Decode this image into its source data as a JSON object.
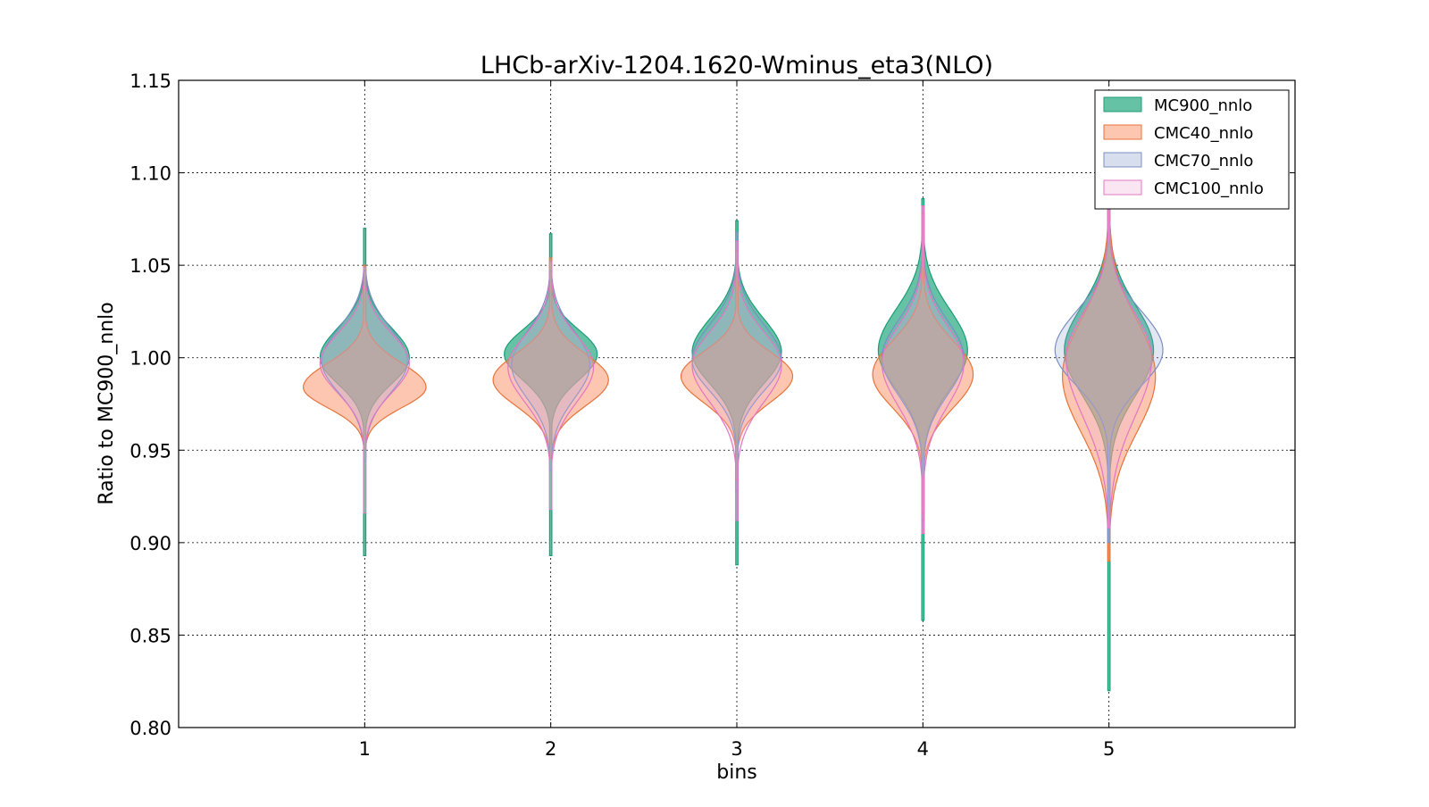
{
  "chart_data": {
    "type": "violin",
    "title": "LHCb-arXiv-1204.1620-Wminus_eta3(NLO)",
    "xlabel": "bins",
    "ylabel": "Ratio to MC900_nnlo",
    "xlim": [
      0,
      6
    ],
    "ylim": [
      0.8,
      1.15
    ],
    "x_ticks": [
      "1",
      "2",
      "3",
      "4",
      "5"
    ],
    "y_ticks": [
      "0.80",
      "0.85",
      "0.90",
      "0.95",
      "1.00",
      "1.05",
      "1.10",
      "1.15"
    ],
    "grid": true,
    "legend_position": "top-right",
    "series": [
      {
        "name": "MC900_nnlo",
        "fill": "#66c2a5",
        "edge": "#1b9e77",
        "fill_opacity": 1.0,
        "violins": [
          {
            "bin": 1,
            "min": 0.893,
            "max": 1.07,
            "peak": 1.0,
            "width": 0.24,
            "s_up": 0.016,
            "s_down": 0.014
          },
          {
            "bin": 2,
            "min": 0.893,
            "max": 1.067,
            "peak": 1.002,
            "width": 0.25,
            "s_up": 0.013,
            "s_down": 0.014
          },
          {
            "bin": 3,
            "min": 0.888,
            "max": 1.074,
            "peak": 1.003,
            "width": 0.24,
            "s_up": 0.018,
            "s_down": 0.017
          },
          {
            "bin": 4,
            "min": 0.858,
            "max": 1.086,
            "peak": 1.004,
            "width": 0.24,
            "s_up": 0.022,
            "s_down": 0.021
          },
          {
            "bin": 5,
            "min": 0.82,
            "max": 1.125,
            "peak": 1.004,
            "width": 0.24,
            "s_up": 0.024,
            "s_down": 0.024
          }
        ]
      },
      {
        "name": "CMC40_nnlo",
        "fill": "#fc8d62",
        "edge": "#e8743b",
        "fill_opacity": 0.5,
        "violins": [
          {
            "bin": 1,
            "min": 0.951,
            "max": 1.05,
            "peak": 0.984,
            "width": 0.33,
            "s_up": 0.013,
            "s_down": 0.011
          },
          {
            "bin": 2,
            "min": 0.946,
            "max": 1.054,
            "peak": 0.988,
            "width": 0.31,
            "s_up": 0.014,
            "s_down": 0.014
          },
          {
            "bin": 3,
            "min": 0.934,
            "max": 1.058,
            "peak": 0.99,
            "width": 0.3,
            "s_up": 0.013,
            "s_down": 0.014
          },
          {
            "bin": 4,
            "min": 0.916,
            "max": 1.078,
            "peak": 0.991,
            "width": 0.27,
            "s_up": 0.018,
            "s_down": 0.018
          },
          {
            "bin": 5,
            "min": 0.89,
            "max": 1.1,
            "peak": 0.99,
            "width": 0.25,
            "s_up": 0.03,
            "s_down": 0.03
          }
        ]
      },
      {
        "name": "CMC70_nnlo",
        "fill": "#8da0cb",
        "edge": "#7b8fc4",
        "fill_opacity": 0.25,
        "violins": [
          {
            "bin": 1,
            "min": 0.944,
            "max": 1.047,
            "peak": 0.998,
            "width": 0.23,
            "s_up": 0.018,
            "s_down": 0.017
          },
          {
            "bin": 2,
            "min": 0.939,
            "max": 1.047,
            "peak": 0.996,
            "width": 0.21,
            "s_up": 0.018,
            "s_down": 0.018
          },
          {
            "bin": 3,
            "min": 0.928,
            "max": 1.068,
            "peak": 0.999,
            "width": 0.24,
            "s_up": 0.019,
            "s_down": 0.017
          },
          {
            "bin": 4,
            "min": 0.912,
            "max": 1.082,
            "peak": 1.0,
            "width": 0.22,
            "s_up": 0.02,
            "s_down": 0.02
          },
          {
            "bin": 5,
            "min": 0.9,
            "max": 1.115,
            "peak": 1.004,
            "width": 0.29,
            "s_up": 0.021,
            "s_down": 0.019
          }
        ]
      },
      {
        "name": "CMC100_nnlo",
        "fill": "#f0b4dc",
        "edge": "#e377c2",
        "fill_opacity": 0.25,
        "violins": [
          {
            "bin": 1,
            "min": 0.916,
            "max": 1.049,
            "peak": 0.997,
            "width": 0.24,
            "s_up": 0.016,
            "s_down": 0.016
          },
          {
            "bin": 2,
            "min": 0.918,
            "max": 1.052,
            "peak": 0.995,
            "width": 0.23,
            "s_up": 0.017,
            "s_down": 0.019
          },
          {
            "bin": 3,
            "min": 0.912,
            "max": 1.063,
            "peak": 0.996,
            "width": 0.24,
            "s_up": 0.018,
            "s_down": 0.02
          },
          {
            "bin": 4,
            "min": 0.905,
            "max": 1.082,
            "peak": 0.997,
            "width": 0.22,
            "s_up": 0.02,
            "s_down": 0.023
          },
          {
            "bin": 5,
            "min": 0.908,
            "max": 1.115,
            "peak": 1.0,
            "width": 0.23,
            "s_up": 0.024,
            "s_down": 0.032
          }
        ]
      }
    ]
  }
}
